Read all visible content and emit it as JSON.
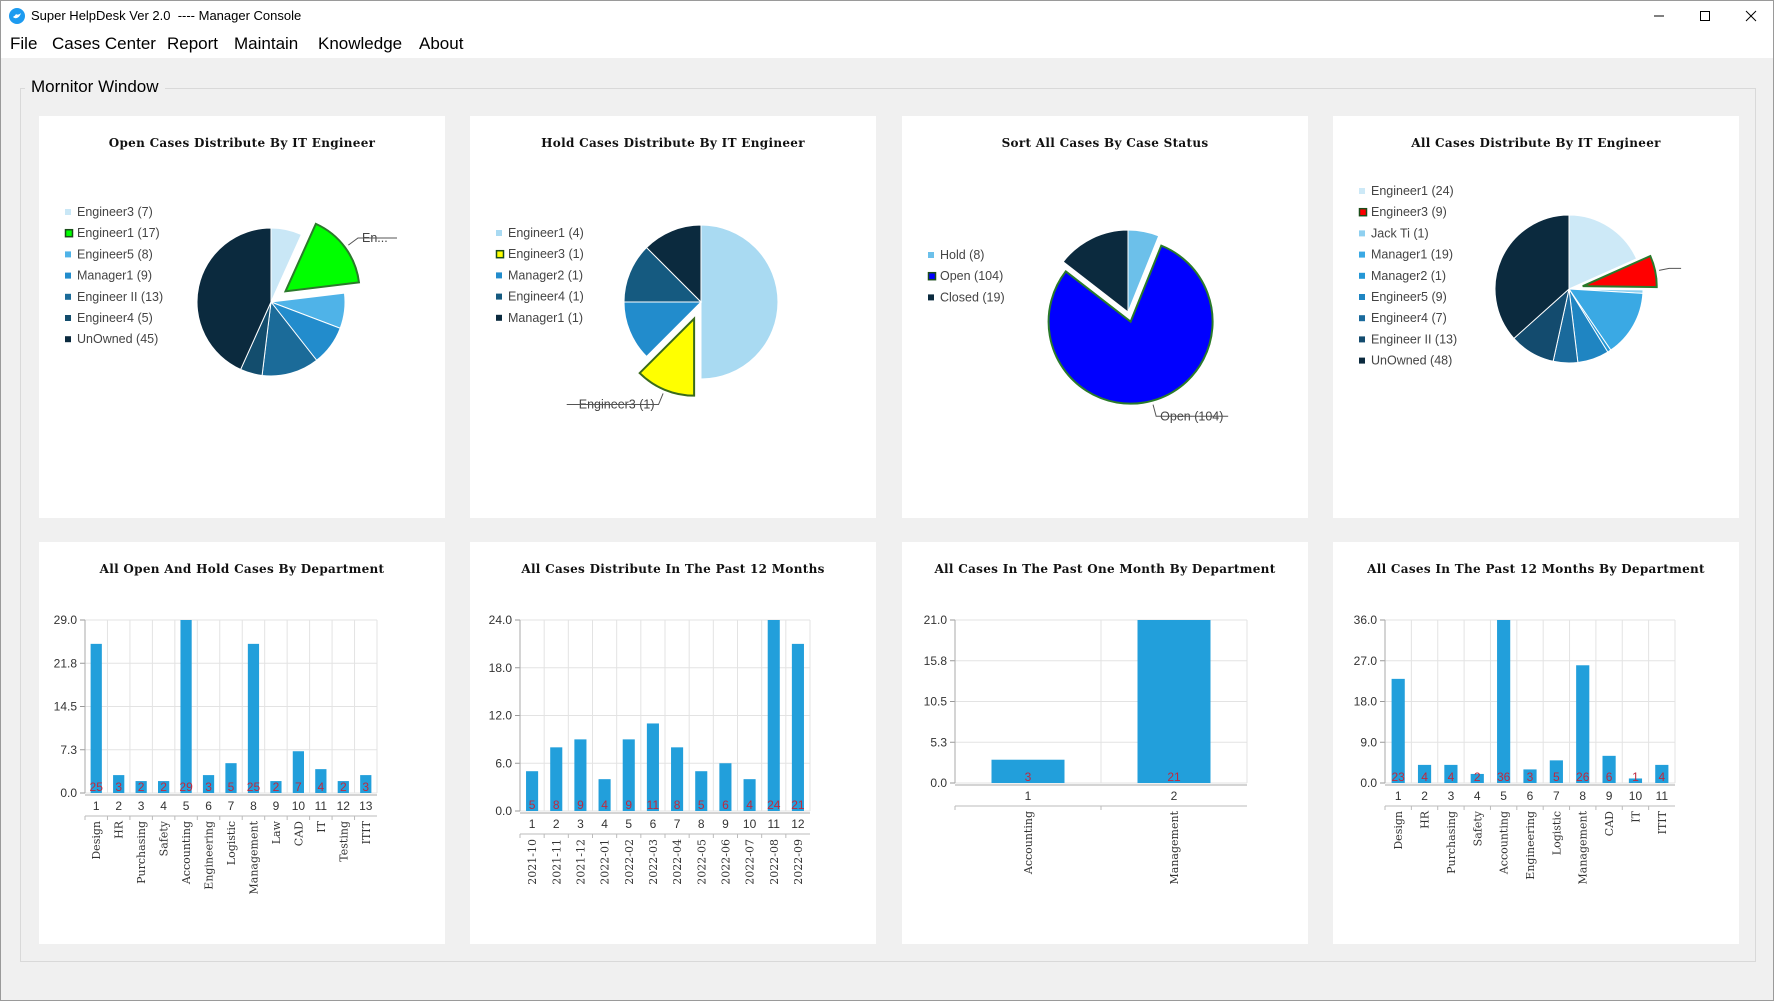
{
  "window": {
    "title": "Super HelpDesk Ver 2.0  ---- Manager Console",
    "icon": "bird-icon"
  },
  "menu": [
    "File",
    "Cases Center",
    "Report",
    "Maintain",
    "Knowledge",
    "About"
  ],
  "monitor_title": "Mornitor Window",
  "colors": {
    "bar": "#229fdb",
    "value_label": "#c0283d",
    "highlight_green": "#00ff00",
    "highlight_yellow": "#ffff00",
    "highlight_red": "#ff0000",
    "highlight_blue": "#0000ff"
  },
  "chart_data": [
    {
      "type": "pie",
      "title": "Open Cases Distribute By IT Engineer",
      "legend": "left",
      "slices": [
        {
          "label": "Engineer3 (7)",
          "value": 7,
          "color": "#c9e7f6"
        },
        {
          "label": "Engineer1 (17)",
          "value": 17,
          "color": "#00ff00",
          "exploded": true,
          "callout": "En..."
        },
        {
          "label": "Engineer5 (8)",
          "value": 8,
          "color": "#4fb3e8"
        },
        {
          "label": "Manager1 (9)",
          "value": 9,
          "color": "#228ccc"
        },
        {
          "label": "Engineer II (13)",
          "value": 13,
          "color": "#1b6b99"
        },
        {
          "label": "Engineer4 (5)",
          "value": 5,
          "color": "#134d6d"
        },
        {
          "label": "UnOwned (45)",
          "value": 45,
          "color": "#0b2a3e"
        }
      ]
    },
    {
      "type": "pie",
      "title": "Hold Cases Distribute By IT Engineer",
      "legend": "left",
      "slices": [
        {
          "label": "Engineer1 (4)",
          "value": 4,
          "color": "#a9daf2"
        },
        {
          "label": "Engineer3 (1)",
          "value": 1,
          "color": "#ffff00",
          "exploded": true,
          "callout": "Engineer3 (1)"
        },
        {
          "label": "Manager2 (1)",
          "value": 1,
          "color": "#228ccc"
        },
        {
          "label": "Engineer4 (1)",
          "value": 1,
          "color": "#155a80"
        },
        {
          "label": "Manager1 (1)",
          "value": 1,
          "color": "#0b2a3e"
        }
      ]
    },
    {
      "type": "pie",
      "title": "Sort All Cases By Case Status",
      "legend": "left",
      "slices": [
        {
          "label": "Hold (8)",
          "value": 8,
          "color": "#6cc0ea"
        },
        {
          "label": "Open (104)",
          "value": 104,
          "color": "#0000ff",
          "exploded": true,
          "callout": "Open (104)"
        },
        {
          "label": "Closed (19)",
          "value": 19,
          "color": "#0b2a3e"
        }
      ]
    },
    {
      "type": "pie",
      "title": "All Cases Distribute By IT Engineer",
      "legend": "left",
      "slices": [
        {
          "label": "Engineer1 (24)",
          "value": 24,
          "color": "#cde9f7"
        },
        {
          "label": "Engineer3 (9)",
          "value": 9,
          "color": "#ff0000",
          "exploded": true
        },
        {
          "label": "Jack Ti (1)",
          "value": 1,
          "color": "#8fd0f0"
        },
        {
          "label": "Manager1 (19)",
          "value": 19,
          "color": "#3aa9e4"
        },
        {
          "label": "Manager2 (1)",
          "value": 1,
          "color": "#2497d6"
        },
        {
          "label": "Engineer5 (9)",
          "value": 9,
          "color": "#1f85c2"
        },
        {
          "label": "Engineer4 (7)",
          "value": 7,
          "color": "#1a6a9c"
        },
        {
          "label": "Engineer II (13)",
          "value": 13,
          "color": "#134b6e"
        },
        {
          "label": "UnOwned (48)",
          "value": 48,
          "color": "#0b2a3e"
        }
      ]
    },
    {
      "type": "bar",
      "title": "All Open And Hold Cases By Department",
      "x": [
        "1",
        "2",
        "3",
        "4",
        "5",
        "6",
        "7",
        "8",
        "9",
        "10",
        "11",
        "12",
        "13"
      ],
      "categories": [
        "Design",
        "HR",
        "Purchasing",
        "Safety",
        "Accounting",
        "Engineering",
        "Logistic",
        "Management",
        "Law",
        "CAD",
        "IT",
        "Testing",
        "ITIT"
      ],
      "values": [
        25,
        3,
        2,
        2,
        29,
        3,
        5,
        25,
        2,
        7,
        4,
        2,
        3
      ],
      "yticks": [
        "0.0",
        "7.3",
        "14.5",
        "21.8",
        "29.0"
      ],
      "ylim": [
        0,
        29
      ],
      "grid": true
    },
    {
      "type": "bar",
      "title": "All Cases Distribute In The Past 12 Months",
      "x": [
        "1",
        "2",
        "3",
        "4",
        "5",
        "6",
        "7",
        "8",
        "9",
        "10",
        "11",
        "12"
      ],
      "categories": [
        "2021-10",
        "2021-11",
        "2021-12",
        "2022-01",
        "2022-02",
        "2022-03",
        "2022-04",
        "2022-05",
        "2022-06",
        "2022-07",
        "2022-08",
        "2022-09"
      ],
      "values": [
        5,
        8,
        9,
        4,
        9,
        11,
        8,
        5,
        6,
        4,
        24,
        21
      ],
      "yticks": [
        "0.0",
        "6.0",
        "12.0",
        "18.0",
        "24.0"
      ],
      "ylim": [
        0,
        24
      ],
      "grid": true
    },
    {
      "type": "bar",
      "title": "All Cases In The Past One Month By Department",
      "x": [
        "1",
        "2"
      ],
      "categories": [
        "Accounting",
        "Management"
      ],
      "values": [
        3,
        21
      ],
      "yticks": [
        "0.0",
        "5.3",
        "10.5",
        "15.8",
        "21.0"
      ],
      "ylim": [
        0,
        21
      ],
      "grid": true
    },
    {
      "type": "bar",
      "title": "All Cases In The Past 12 Months By Department",
      "x": [
        "1",
        "2",
        "3",
        "4",
        "5",
        "6",
        "7",
        "8",
        "9",
        "10",
        "11"
      ],
      "categories": [
        "Design",
        "HR",
        "Purchasing",
        "Safety",
        "Accounting",
        "Engineering",
        "Logistic",
        "Management",
        "CAD",
        "IT",
        "ITIT"
      ],
      "values": [
        23,
        4,
        4,
        2,
        36,
        3,
        5,
        26,
        6,
        1,
        4
      ],
      "yticks": [
        "0.0",
        "9.0",
        "18.0",
        "27.0",
        "36.0"
      ],
      "ylim": [
        0,
        36
      ],
      "grid": true
    }
  ]
}
